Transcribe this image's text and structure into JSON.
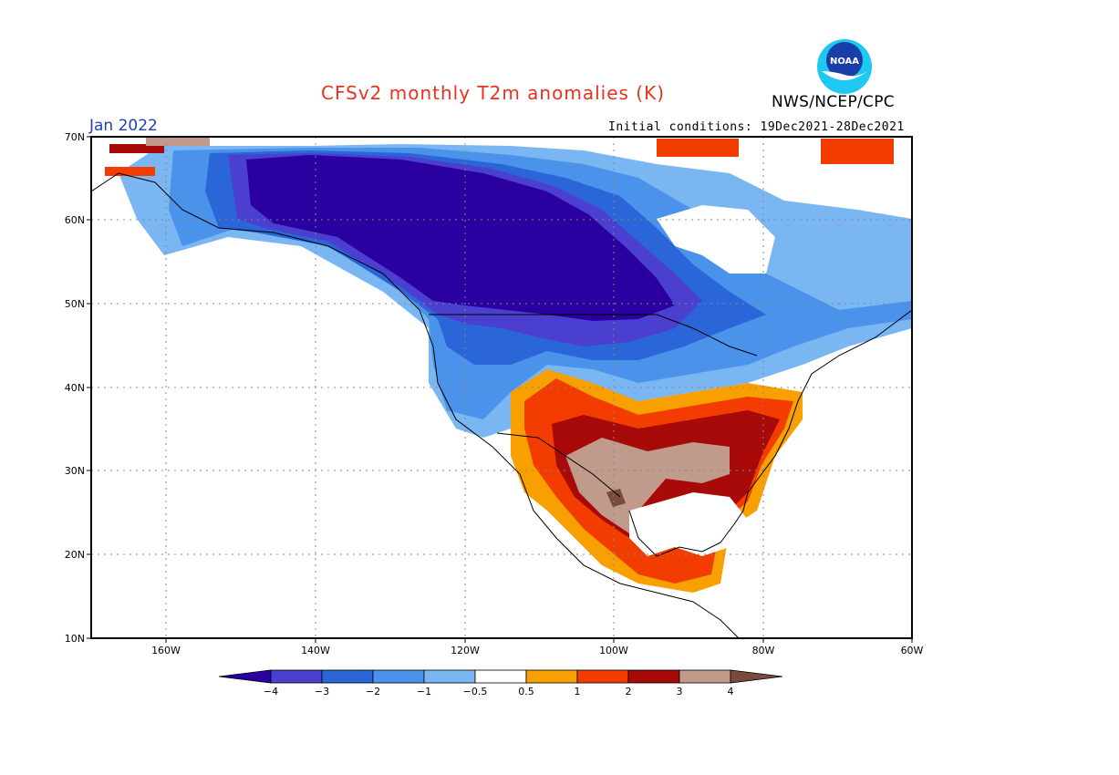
{
  "header": {
    "title": "CFSv2 monthly T2m anomalies (K)",
    "month": "Jan 2022",
    "initial_conditions": "Initial conditions: 19Dec2021-28Dec2021",
    "agency": "NWS/NCEP/CPC",
    "logo_text": "NOAA"
  },
  "axes": {
    "lat_labels": [
      "70N",
      "60N",
      "50N",
      "40N",
      "30N",
      "20N",
      "10N"
    ],
    "lon_labels": [
      "160W",
      "140W",
      "120W",
      "100W",
      "80W",
      "60W"
    ]
  },
  "colorbar": {
    "labels": [
      "-4",
      "-3",
      "-2",
      "-1",
      "-0.5",
      "0.5",
      "1",
      "2",
      "3",
      "4"
    ],
    "colors": [
      "#2a00a0",
      "#4a3fcf",
      "#2a66d8",
      "#4a92ea",
      "#7ab6f2",
      "#ffffff",
      "#f7a000",
      "#f23c00",
      "#a80a0a",
      "#c09a8a",
      "#7a4a3a"
    ]
  }
}
